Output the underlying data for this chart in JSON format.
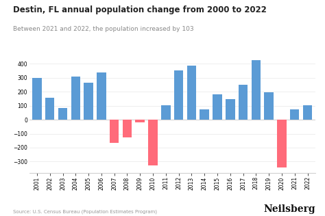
{
  "title": "Destin, FL annual population change from 2000 to 2022",
  "subtitle": "Between 2021 and 2022, the population increased by 103",
  "source": "Source: U.S. Census Bureau (Population Estimates Program)",
  "brand": "Neilsberg",
  "years": [
    2001,
    2002,
    2003,
    2004,
    2005,
    2006,
    2007,
    2008,
    2009,
    2010,
    2011,
    2012,
    2013,
    2014,
    2015,
    2016,
    2017,
    2018,
    2019,
    2020,
    2021,
    2022
  ],
  "values": [
    300,
    155,
    85,
    310,
    265,
    340,
    -165,
    -125,
    -20,
    -325,
    105,
    355,
    385,
    75,
    180,
    145,
    248,
    425,
    195,
    -340,
    75,
    103
  ],
  "color_positive": "#5B9BD5",
  "color_negative": "#FF6B7A",
  "ylim": [
    -380,
    470
  ],
  "yticks": [
    -300,
    -200,
    -100,
    0,
    100,
    200,
    300,
    400
  ],
  "background_color": "#FFFFFF",
  "title_fontsize": 8.5,
  "subtitle_fontsize": 6.5,
  "axis_fontsize": 5.5,
  "source_fontsize": 5.0,
  "brand_fontsize": 10
}
